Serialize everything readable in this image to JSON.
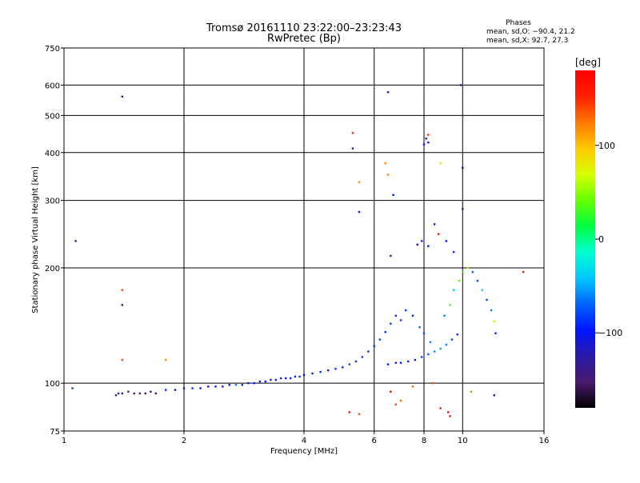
{
  "chart_data": {
    "type": "scatter",
    "title": "Tromsø 20161110 23:22:00–23:23:43",
    "subtitle": "RwPretec (Bp)",
    "xlabel": "Frequency [MHz]",
    "ylabel": "Stationary phase Virtual Height [km]",
    "x_scale": "log",
    "y_scale": "log",
    "xlim": [
      1,
      16
    ],
    "ylim": [
      75,
      750
    ],
    "x_ticks": [
      1,
      2,
      4,
      6,
      8,
      10,
      16
    ],
    "x_tick_labels": [
      "1",
      "2",
      "4",
      "6",
      "8",
      "10",
      "16"
    ],
    "x_grid": [
      2,
      4,
      6,
      8,
      10
    ],
    "y_ticks": [
      75,
      100,
      200,
      300,
      400,
      500,
      600,
      750
    ],
    "y_tick_labels": [
      "75",
      "100",
      "200",
      "300",
      "400",
      "500",
      "600",
      "750"
    ],
    "y_grid": [
      100,
      200,
      300,
      400,
      500,
      600
    ],
    "grid": true,
    "stats": {
      "heading": "Phases",
      "line_o": "mean, sd,O: −90.4, 21.2",
      "line_x": "mean, sd,X:  92.7, 27.3"
    },
    "colorbar": {
      "label": "[deg]",
      "range": [
        -180,
        180
      ],
      "ticks": [
        100,
        0,
        -100
      ],
      "tick_labels": [
        "100",
        "0",
        "−100"
      ],
      "colormap": [
        "#000000",
        "#4a1a6e",
        "#2a1aa8",
        "#0014ff",
        "#0064ff",
        "#00c8ff",
        "#00ffd0",
        "#00ff40",
        "#66ff00",
        "#d8ff00",
        "#ffc800",
        "#ff7800",
        "#ff1e00",
        "#ff0000"
      ]
    },
    "series": [
      {
        "role": "main trace",
        "points": [
          [
            1.05,
            97,
            -80
          ],
          [
            1.35,
            93,
            -140
          ],
          [
            1.37,
            94,
            -130
          ],
          [
            1.4,
            94,
            -135
          ],
          [
            1.45,
            95,
            -150
          ],
          [
            1.5,
            94,
            -140
          ],
          [
            1.55,
            94,
            -145
          ],
          [
            1.6,
            94,
            -150
          ],
          [
            1.65,
            95,
            -140
          ],
          [
            1.7,
            94,
            -130
          ],
          [
            1.8,
            96,
            -90
          ],
          [
            1.9,
            96,
            -100
          ],
          [
            2.0,
            97,
            -95
          ],
          [
            2.1,
            97,
            -90
          ],
          [
            2.2,
            97,
            -110
          ],
          [
            2.3,
            98,
            -100
          ],
          [
            2.4,
            98,
            -90
          ],
          [
            2.5,
            98,
            -110
          ],
          [
            2.6,
            99,
            -100
          ],
          [
            2.7,
            99,
            -60
          ],
          [
            2.8,
            99,
            -90
          ],
          [
            2.9,
            100,
            -100
          ],
          [
            3.0,
            100,
            -95
          ],
          [
            3.1,
            101,
            -90
          ],
          [
            3.2,
            101,
            -100
          ],
          [
            3.3,
            102,
            -105
          ],
          [
            3.4,
            102,
            -100
          ],
          [
            3.5,
            103,
            -110
          ],
          [
            3.6,
            103,
            -105
          ],
          [
            3.7,
            103,
            -95
          ],
          [
            3.8,
            104,
            -100
          ],
          [
            3.9,
            104,
            -90
          ],
          [
            4.0,
            105,
            -100
          ],
          [
            4.2,
            106,
            -95
          ],
          [
            4.4,
            107,
            -90
          ],
          [
            4.6,
            108,
            -100
          ],
          [
            4.8,
            109,
            -85
          ],
          [
            5.0,
            110,
            -90
          ],
          [
            5.2,
            112,
            -80
          ],
          [
            5.4,
            114,
            -85
          ],
          [
            5.6,
            117,
            -80
          ],
          [
            5.8,
            121,
            -90
          ],
          [
            6.0,
            125,
            -85
          ],
          [
            6.2,
            130,
            -80
          ],
          [
            6.4,
            136,
            -90
          ],
          [
            6.6,
            143,
            -85
          ],
          [
            6.8,
            150,
            -90
          ],
          [
            7.0,
            146,
            -80
          ],
          [
            7.2,
            155,
            -85
          ],
          [
            7.5,
            150,
            -90
          ],
          [
            7.8,
            140,
            -70
          ],
          [
            8.0,
            135,
            -80
          ],
          [
            8.3,
            128,
            -60
          ]
        ]
      },
      {
        "role": "lower branch",
        "points": [
          [
            6.5,
            112,
            -100
          ],
          [
            6.8,
            113,
            -95
          ],
          [
            7.0,
            113,
            -100
          ],
          [
            7.3,
            114,
            -90
          ],
          [
            7.6,
            115,
            -95
          ],
          [
            7.9,
            117,
            -80
          ],
          [
            8.2,
            119,
            -70
          ],
          [
            8.5,
            121,
            -60
          ],
          [
            8.8,
            123,
            -50
          ],
          [
            9.1,
            126,
            -60
          ],
          [
            9.4,
            130,
            -80
          ],
          [
            9.7,
            134,
            -90
          ]
        ]
      },
      {
        "role": "upper branch",
        "points": [
          [
            9.0,
            150,
            -60
          ],
          [
            9.3,
            160,
            30
          ],
          [
            9.5,
            175,
            -40
          ],
          [
            9.8,
            185,
            40
          ],
          [
            10.0,
            195,
            30
          ],
          [
            10.3,
            200,
            60
          ],
          [
            10.6,
            195,
            -70
          ],
          [
            10.9,
            185,
            -80
          ],
          [
            11.2,
            175,
            -40
          ],
          [
            11.5,
            165,
            -80
          ],
          [
            11.8,
            155,
            -60
          ],
          [
            12.0,
            145,
            60
          ],
          [
            12.1,
            135,
            -90
          ]
        ]
      },
      {
        "role": "scattered",
        "points": [
          [
            1.07,
            235,
            -120
          ],
          [
            1.4,
            560,
            -120
          ],
          [
            1.4,
            175,
            140
          ],
          [
            1.4,
            160,
            -120
          ],
          [
            1.4,
            115,
            140
          ],
          [
            1.8,
            115,
            120
          ],
          [
            5.3,
            450,
            150
          ],
          [
            5.3,
            410,
            -120
          ],
          [
            5.5,
            335,
            120
          ],
          [
            5.5,
            280,
            -110
          ],
          [
            6.5,
            575,
            -120
          ],
          [
            6.4,
            375,
            120
          ],
          [
            6.5,
            350,
            120
          ],
          [
            6.7,
            310,
            -100
          ],
          [
            6.6,
            215,
            -110
          ],
          [
            8.2,
            445,
            150
          ],
          [
            8.1,
            435,
            -120
          ],
          [
            8.2,
            425,
            -110
          ],
          [
            8.0,
            420,
            -100
          ],
          [
            8.8,
            375,
            60
          ],
          [
            9.9,
            600,
            -120
          ],
          [
            10.0,
            365,
            -110
          ],
          [
            10.0,
            285,
            -120
          ],
          [
            8.5,
            260,
            -110
          ],
          [
            8.7,
            245,
            170
          ],
          [
            9.1,
            235,
            -100
          ],
          [
            9.5,
            220,
            -90
          ],
          [
            8.2,
            228,
            -100
          ],
          [
            7.9,
            235,
            -90
          ],
          [
            7.7,
            230,
            -110
          ],
          [
            14.2,
            195,
            160
          ],
          [
            5.2,
            84,
            160
          ],
          [
            5.5,
            83,
            140
          ],
          [
            6.8,
            88,
            140
          ],
          [
            7.0,
            90,
            130
          ],
          [
            8.8,
            86,
            160
          ],
          [
            9.2,
            84,
            170
          ],
          [
            9.3,
            82,
            160
          ],
          [
            12.0,
            93,
            -130
          ],
          [
            6.6,
            95,
            180
          ],
          [
            7.5,
            98,
            130
          ],
          [
            8.4,
            100,
            140
          ],
          [
            10.5,
            95,
            120
          ]
        ]
      }
    ]
  }
}
